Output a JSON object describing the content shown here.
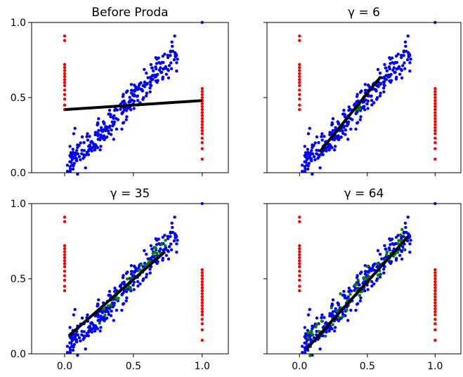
{
  "chart_data": [
    {
      "type": "scatter",
      "title": "Before Proda",
      "xlim": [
        -0.24,
        1.19
      ],
      "ylim": [
        0,
        1
      ],
      "xticks": [
        0.0,
        0.5,
        1.0
      ],
      "yticks": [
        0.0,
        0.5,
        1.0
      ],
      "xtick_labels": [],
      "ytick_labels": [
        "0.0",
        "0.5",
        "1.0"
      ],
      "series": [
        {
          "role": "left-column",
          "color": "#ff0000",
          "x": 0.0,
          "y": [
            0.42,
            0.45,
            0.49,
            0.52,
            0.55,
            0.58,
            0.6,
            0.62,
            0.64,
            0.66,
            0.68,
            0.7,
            0.72,
            0.88,
            0.91
          ]
        },
        {
          "role": "right-column",
          "color": "#ff0000",
          "x": 1.0,
          "y": [
            0.09,
            0.16,
            0.2,
            0.23,
            0.26,
            0.28,
            0.3,
            0.32,
            0.34,
            0.36,
            0.38,
            0.4,
            0.42,
            0.44,
            0.46,
            0.48,
            0.5,
            0.52,
            0.54,
            0.56
          ]
        },
        {
          "role": "cloud",
          "color": "#0000ff",
          "x_range": [
            0.02,
            0.82
          ],
          "slope": 0.93,
          "intercept": 0.03,
          "spread": 0.055,
          "count": 300,
          "seed": 11
        },
        {
          "role": "outliers",
          "color": "#0000ff",
          "points": [
            [
              1.0,
              1.0
            ],
            [
              0.8,
              0.91
            ],
            [
              0.78,
              0.87
            ],
            [
              0.77,
              0.81
            ],
            [
              0.02,
              0.05
            ],
            [
              0.04,
              0.04
            ]
          ]
        }
      ],
      "fit_line": {
        "x": [
          0.0,
          1.0
        ],
        "y": [
          0.42,
          0.48
        ]
      }
    },
    {
      "type": "scatter",
      "title": "γ = 6",
      "xlim": [
        -0.24,
        1.19
      ],
      "ylim": [
        0,
        1
      ],
      "xticks": [
        0.0,
        0.5,
        1.0
      ],
      "yticks": [
        0.0,
        0.5,
        1.0
      ],
      "xtick_labels": [],
      "ytick_labels": [],
      "series": [
        {
          "role": "left-column",
          "color": "#ff0000",
          "x": 0.0,
          "y": [
            0.42,
            0.45,
            0.49,
            0.52,
            0.55,
            0.58,
            0.6,
            0.62,
            0.64,
            0.66,
            0.68,
            0.7,
            0.72,
            0.88,
            0.91
          ]
        },
        {
          "role": "right-column",
          "color": "#ff0000",
          "x": 1.0,
          "y": [
            0.09,
            0.16,
            0.2,
            0.23,
            0.26,
            0.28,
            0.3,
            0.32,
            0.34,
            0.36,
            0.38,
            0.4,
            0.42,
            0.44,
            0.46,
            0.48,
            0.5,
            0.52,
            0.54,
            0.56
          ]
        },
        {
          "role": "cloud",
          "color": "#0000ff",
          "x_range": [
            0.02,
            0.82
          ],
          "slope": 0.93,
          "intercept": 0.03,
          "spread": 0.055,
          "count": 300,
          "seed": 11
        },
        {
          "role": "outliers",
          "color": "#0000ff",
          "points": [
            [
              1.0,
              1.0
            ],
            [
              0.8,
              0.91
            ],
            [
              0.78,
              0.87
            ],
            [
              0.77,
              0.81
            ],
            [
              0.02,
              0.05
            ],
            [
              0.04,
              0.04
            ]
          ]
        },
        {
          "role": "selected",
          "color": "#008000",
          "x_range": [
            0.4,
            0.5
          ],
          "slope": 0.93,
          "intercept": 0.03,
          "spread": 0.03,
          "count": 6,
          "seed": 21
        }
      ],
      "fit_line": {
        "x": [
          0.15,
          0.6
        ],
        "y": [
          0.14,
          0.64
        ]
      }
    },
    {
      "type": "scatter",
      "title": "γ = 35",
      "xlim": [
        -0.24,
        1.19
      ],
      "ylim": [
        0,
        1
      ],
      "xticks": [
        0.0,
        0.5,
        1.0
      ],
      "yticks": [
        0.0,
        0.5,
        1.0
      ],
      "xtick_labels": [
        "0.0",
        "0.5",
        "1.0"
      ],
      "ytick_labels": [
        "0.0",
        "0.5",
        "1.0"
      ],
      "series": [
        {
          "role": "left-column",
          "color": "#ff0000",
          "x": 0.0,
          "y": [
            0.42,
            0.45,
            0.49,
            0.52,
            0.55,
            0.58,
            0.6,
            0.62,
            0.64,
            0.66,
            0.68,
            0.7,
            0.72,
            0.88,
            0.91
          ]
        },
        {
          "role": "right-column",
          "color": "#ff0000",
          "x": 1.0,
          "y": [
            0.09,
            0.16,
            0.2,
            0.23,
            0.26,
            0.28,
            0.3,
            0.32,
            0.34,
            0.36,
            0.38,
            0.4,
            0.42,
            0.44,
            0.46,
            0.48,
            0.5,
            0.52,
            0.54,
            0.56
          ]
        },
        {
          "role": "cloud",
          "color": "#0000ff",
          "x_range": [
            0.02,
            0.82
          ],
          "slope": 0.93,
          "intercept": 0.03,
          "spread": 0.055,
          "count": 300,
          "seed": 11
        },
        {
          "role": "outliers",
          "color": "#0000ff",
          "points": [
            [
              1.0,
              1.0
            ],
            [
              0.8,
              0.91
            ],
            [
              0.78,
              0.87
            ],
            [
              0.77,
              0.81
            ],
            [
              0.02,
              0.05
            ],
            [
              0.04,
              0.04
            ]
          ]
        },
        {
          "role": "selected",
          "color": "#008000",
          "x_range": [
            0.25,
            0.75
          ],
          "slope": 0.93,
          "intercept": 0.03,
          "spread": 0.04,
          "count": 40,
          "seed": 35
        }
      ],
      "fit_line": {
        "x": [
          0.03,
          0.73
        ],
        "y": [
          0.12,
          0.68
        ]
      }
    },
    {
      "type": "scatter",
      "title": "γ = 64",
      "xlim": [
        -0.24,
        1.19
      ],
      "ylim": [
        0,
        1
      ],
      "xticks": [
        0.0,
        0.5,
        1.0
      ],
      "yticks": [
        0.0,
        0.5,
        1.0
      ],
      "xtick_labels": [
        "0.0",
        "0.5",
        "1.0"
      ],
      "ytick_labels": [],
      "series": [
        {
          "role": "left-column",
          "color": "#ff0000",
          "x": 0.0,
          "y": [
            0.42,
            0.45,
            0.49,
            0.52,
            0.55,
            0.58,
            0.6,
            0.62,
            0.64,
            0.66,
            0.68,
            0.7,
            0.72,
            0.88,
            0.91
          ]
        },
        {
          "role": "right-column",
          "color": "#ff0000",
          "x": 1.0,
          "y": [
            0.09,
            0.16,
            0.2,
            0.23,
            0.26,
            0.28,
            0.3,
            0.32,
            0.34,
            0.36,
            0.38,
            0.4,
            0.42,
            0.44,
            0.46,
            0.48,
            0.5,
            0.52,
            0.54,
            0.56
          ]
        },
        {
          "role": "cloud",
          "color": "#0000ff",
          "x_range": [
            0.02,
            0.82
          ],
          "slope": 0.93,
          "intercept": 0.03,
          "spread": 0.055,
          "count": 300,
          "seed": 11
        },
        {
          "role": "outliers",
          "color": "#0000ff",
          "points": [
            [
              1.0,
              1.0
            ],
            [
              0.8,
              0.91
            ],
            [
              0.78,
              0.87
            ],
            [
              0.77,
              0.81
            ],
            [
              0.02,
              0.05
            ],
            [
              0.04,
              0.04
            ]
          ]
        },
        {
          "role": "selected",
          "color": "#008000",
          "x_range": [
            0.05,
            0.8
          ],
          "slope": 0.93,
          "intercept": 0.03,
          "spread": 0.045,
          "count": 70,
          "seed": 64
        }
      ],
      "fit_line": {
        "x": [
          0.05,
          0.8
        ],
        "y": [
          0.03,
          0.78
        ]
      }
    }
  ]
}
